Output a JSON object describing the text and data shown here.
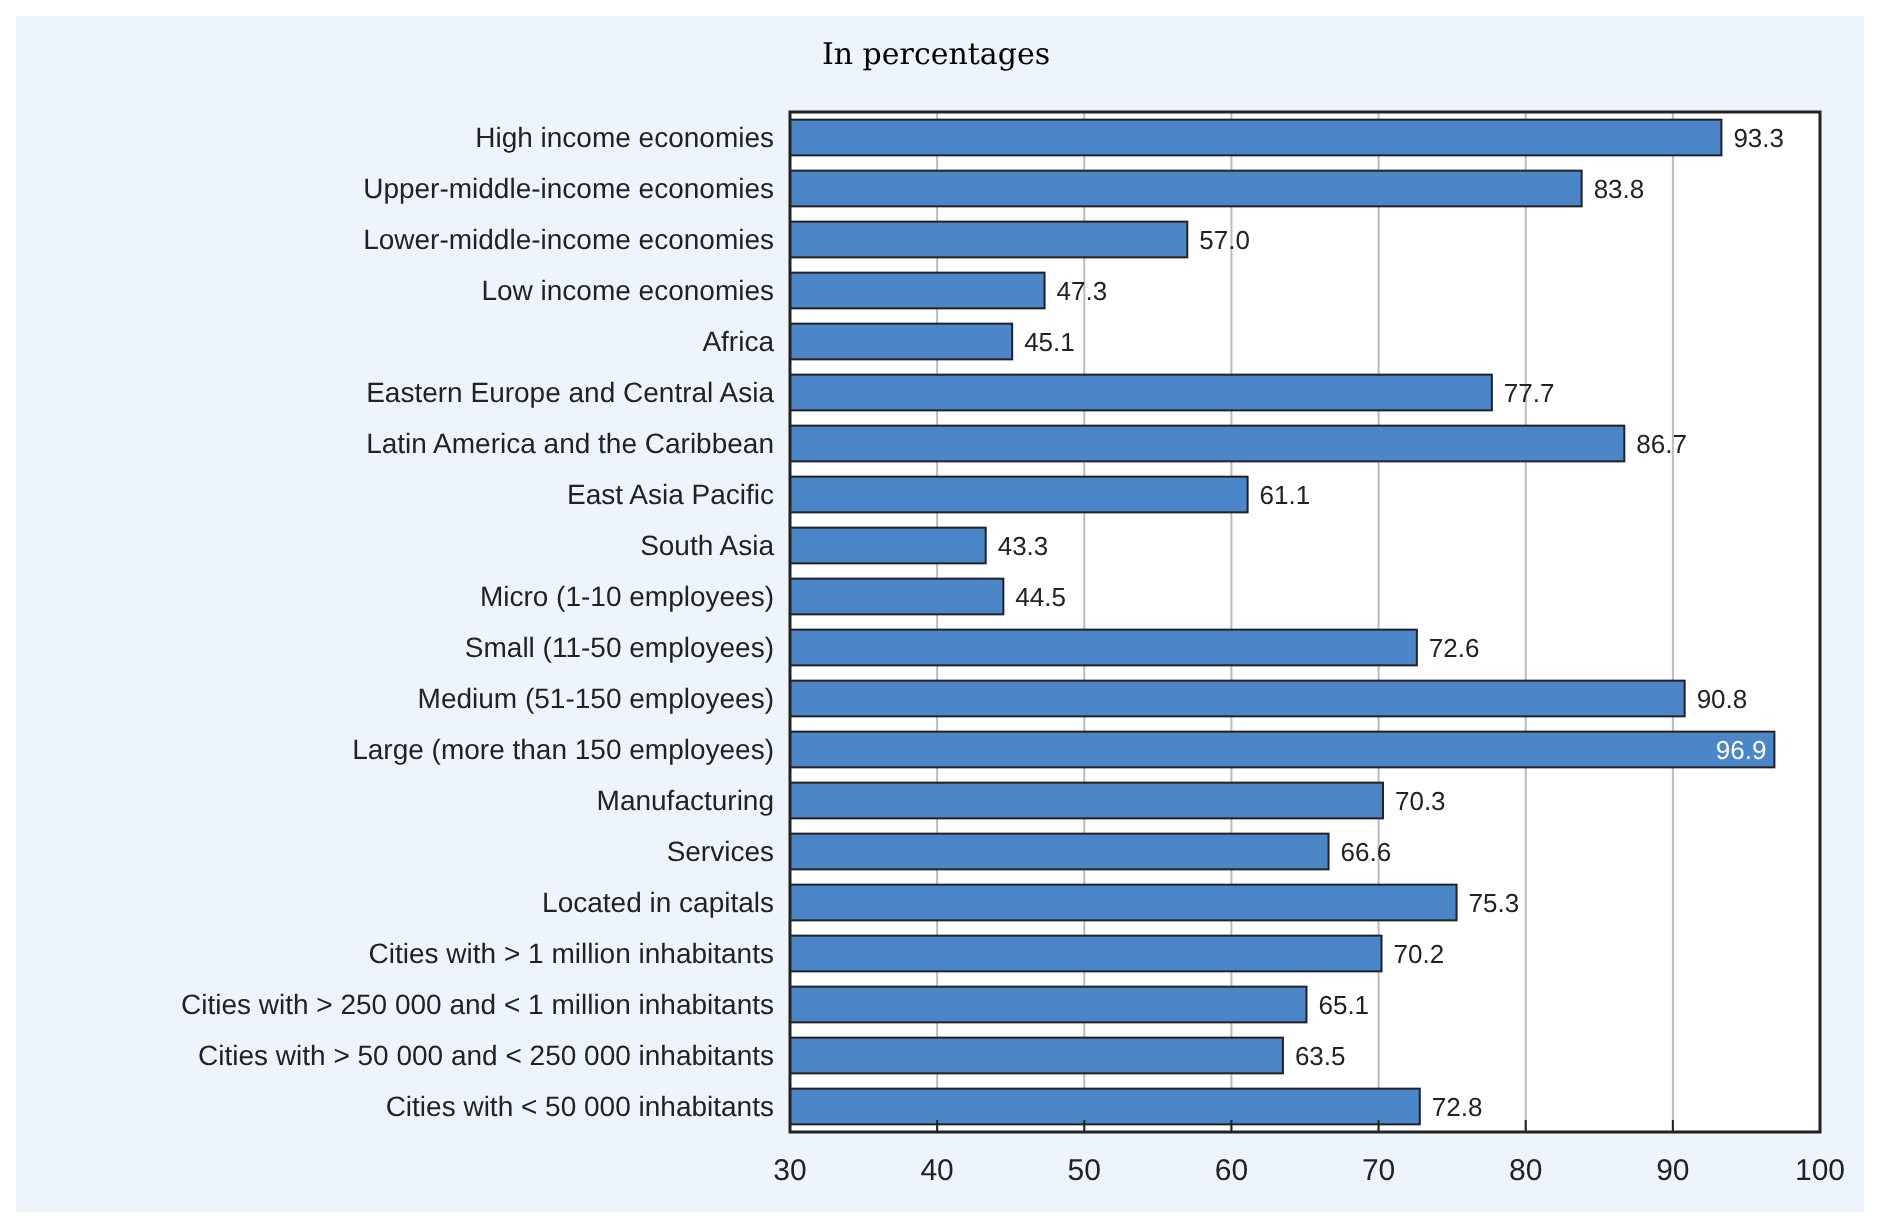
{
  "chart_data": {
    "type": "bar",
    "orientation": "horizontal",
    "subtitle": "In percentages",
    "categories": [
      "High income economies",
      "Upper-middle-income economies",
      "Lower-middle-income economies",
      "Low income economies",
      "Africa",
      "Eastern Europe and Central Asia",
      "Latin America and the Caribbean",
      "East Asia Pacific",
      "South Asia",
      "Micro (1-10 employees)",
      "Small (11-50 employees)",
      "Medium (51-150 employees)",
      "Large (more than 150 employees)",
      "Manufacturing",
      "Services",
      "Located in capitals",
      "Cities with > 1 million inhabitants",
      "Cities with > 250 000 and < 1 million inhabitants",
      "Cities with > 50 000 and < 250 000 inhabitants",
      "Cities with < 50 000 inhabitants"
    ],
    "values": [
      93.3,
      83.8,
      57.0,
      47.3,
      45.1,
      77.7,
      86.7,
      61.1,
      43.3,
      44.5,
      72.6,
      90.8,
      96.9,
      70.3,
      66.6,
      75.3,
      70.2,
      65.1,
      63.5,
      72.8
    ],
    "value_labels": [
      "93.3",
      "83.8",
      "57.0",
      "47.3",
      "45.1",
      "77.7",
      "86.7",
      "61.1",
      "43.3",
      "44.5",
      "72.6",
      "90.8",
      "96.9",
      "70.3",
      "66.6",
      "75.3",
      "70.2",
      "65.1",
      "63.5",
      "72.8"
    ],
    "color": "#4a86c8",
    "xlim": [
      30,
      100
    ],
    "xticks": [
      30,
      40,
      50,
      60,
      70,
      80,
      90,
      100
    ],
    "grid": "x"
  }
}
